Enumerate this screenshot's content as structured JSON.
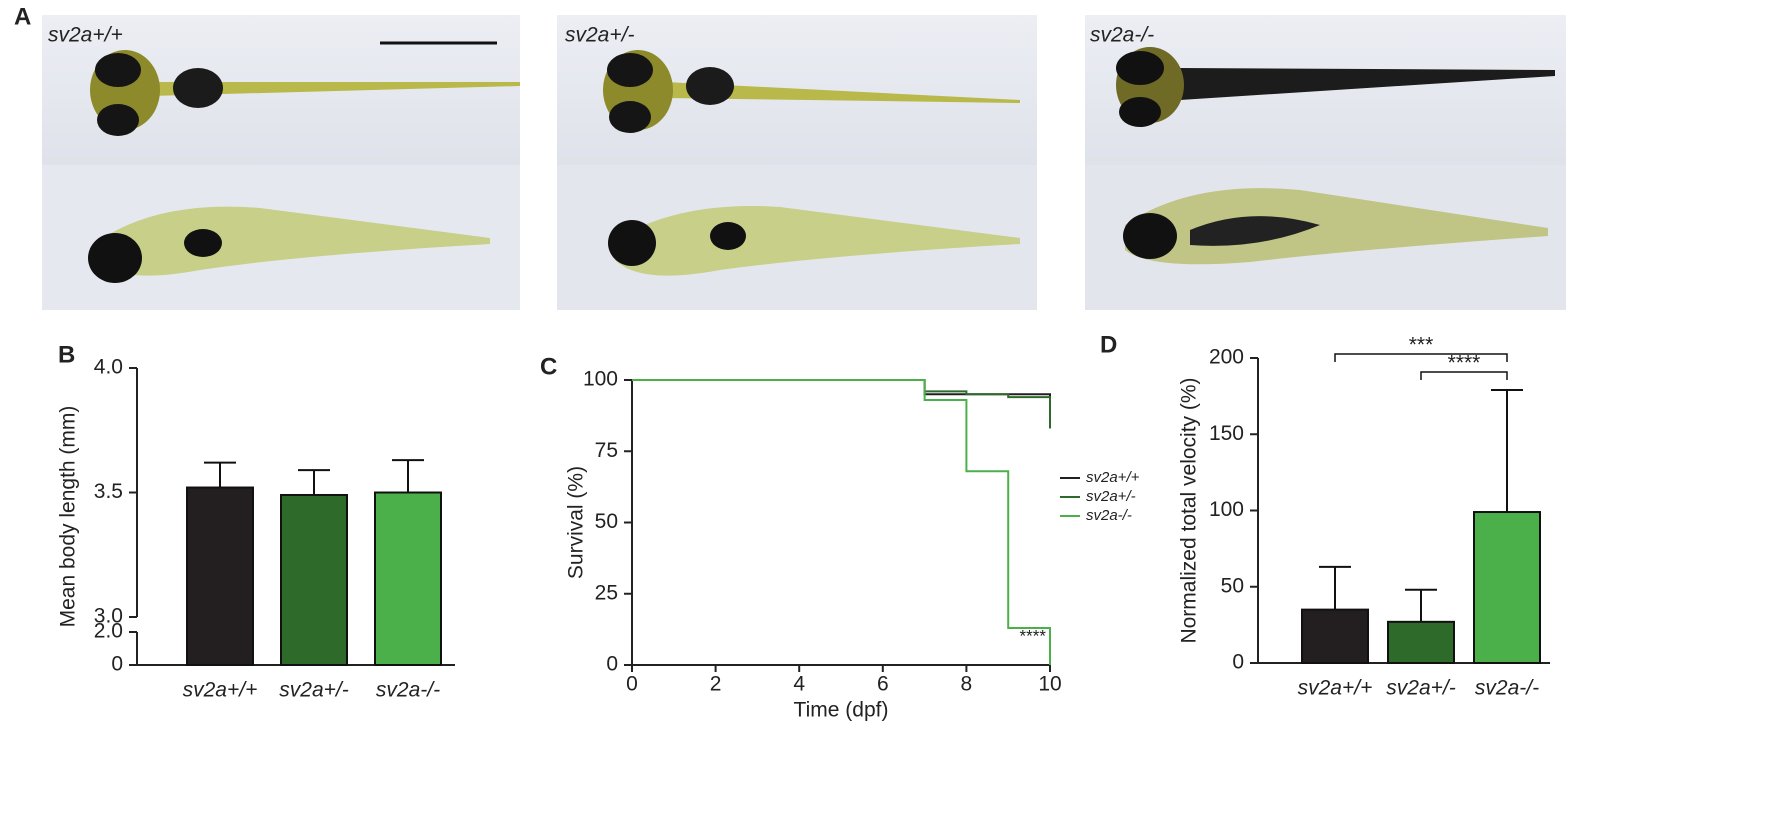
{
  "panel_a": {
    "panel_label": "A",
    "genotypes": [
      "sv2a+/+",
      "sv2a+/-",
      "sv2a-/-"
    ]
  },
  "chart_data": [
    {
      "type": "bar",
      "panel_label": "B",
      "ylabel": "Mean body length (mm)",
      "categories": [
        "sv2a+/+",
        "sv2a+/-",
        "sv2a-/-"
      ],
      "values": [
        3.52,
        3.49,
        3.5
      ],
      "errors": [
        0.1,
        0.1,
        0.13
      ],
      "colors": [
        "#231f20",
        "#2e6b2b",
        "#4cb04a"
      ],
      "ylim": [
        0,
        4
      ],
      "axis_break": [
        2,
        3
      ],
      "yticks": [
        0,
        {
          "value": 2,
          "label": "2.0"
        },
        {
          "value": 3,
          "label": "3.0"
        },
        3.5,
        {
          "value": 4,
          "label": "4.0"
        }
      ]
    },
    {
      "type": "line",
      "panel_label": "C",
      "xlabel": "Time (dpf)",
      "ylabel": "Survival (%)",
      "xlim": [
        0,
        10
      ],
      "xticks": [
        0,
        2,
        4,
        6,
        8,
        10
      ],
      "ylim": [
        0,
        100
      ],
      "yticks": [
        0,
        25,
        50,
        75,
        100
      ],
      "series": [
        {
          "name": "sv2a+/+",
          "color": "#231f20",
          "x": [
            0,
            7,
            7,
            10,
            10
          ],
          "values": [
            100,
            100,
            95,
            95,
            87
          ]
        },
        {
          "name": "sv2a+/-",
          "color": "#2e6b2b",
          "x": [
            0,
            7,
            7,
            8,
            8,
            9,
            9,
            10,
            10
          ],
          "values": [
            100,
            100,
            96,
            96,
            95,
            95,
            94,
            94,
            83
          ]
        },
        {
          "name": "sv2a-/-",
          "color": "#4cb04a",
          "x": [
            0,
            7,
            7,
            8,
            8,
            9,
            9,
            10,
            10
          ],
          "values": [
            100,
            100,
            93,
            93,
            68,
            68,
            13,
            13,
            0
          ]
        }
      ],
      "annotation": "****"
    },
    {
      "type": "bar",
      "panel_label": "D",
      "ylabel": "Normalized total velocity (%)",
      "categories": [
        "sv2a+/+",
        "sv2a+/-",
        "sv2a-/-"
      ],
      "values": [
        35,
        27,
        99
      ],
      "errors": [
        28,
        21,
        80
      ],
      "colors": [
        "#231f20",
        "#2e6b2b",
        "#4cb04a"
      ],
      "ylim": [
        0,
        200
      ],
      "yticks": [
        0,
        50,
        100,
        150,
        200
      ],
      "comparisons": [
        {
          "label": "***",
          "between": [
            "sv2a+/+",
            "sv2a-/-"
          ]
        },
        {
          "label": "****",
          "between": [
            "sv2a+/-",
            "sv2a-/-"
          ]
        }
      ]
    }
  ]
}
